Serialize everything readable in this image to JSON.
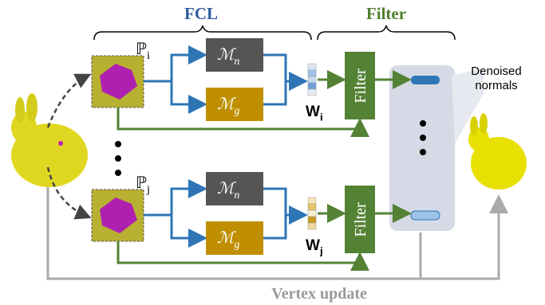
{
  "sections": {
    "fcl": "FCL",
    "filter": "Filter"
  },
  "branches": [
    {
      "patch": {
        "symbol": "ℙ",
        "sub": "i"
      },
      "mn": {
        "symbol": "ℳ",
        "sub": "n"
      },
      "mg": {
        "symbol": "ℳ",
        "sub": "g"
      },
      "weight": {
        "symbol": "W",
        "sub": "i"
      },
      "filter": "Filter"
    },
    {
      "patch": {
        "symbol": "ℙ",
        "sub": "j"
      },
      "mn": {
        "symbol": "ℳ",
        "sub": "n"
      },
      "mg": {
        "symbol": "ℳ",
        "sub": "g"
      },
      "weight": {
        "symbol": "W",
        "sub": "j"
      },
      "filter": "Filter"
    }
  ],
  "output_label": [
    "Denoised",
    "normals"
  ],
  "bottom_label": "Vertex update"
}
